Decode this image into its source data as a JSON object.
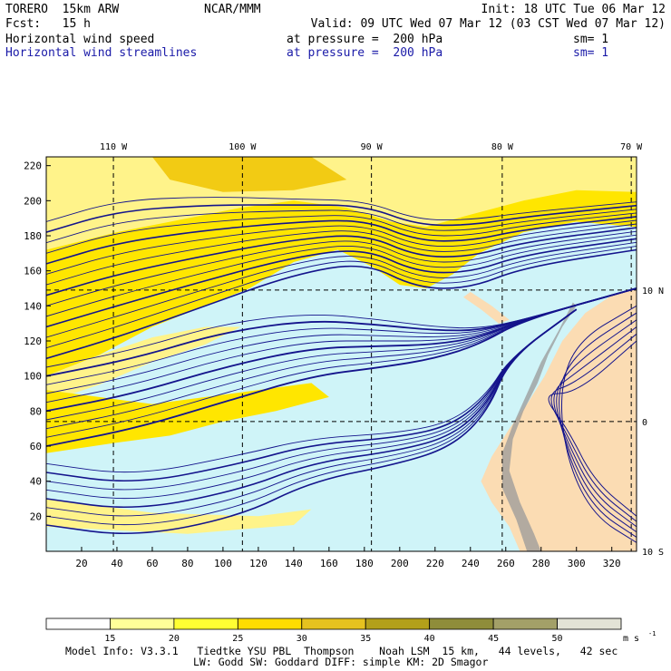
{
  "header": {
    "model": "TORERO  15km ARW",
    "org": "NCAR/MMM",
    "init": "Init: 18 UTC Tue 06 Mar 12",
    "fcst": "Fcst:   15 h",
    "valid": "Valid: 09 UTC Wed 07 Mar 12 (03 CST Wed 07 Mar 12)",
    "field1": "Horizontal wind speed",
    "field1_level": "at pressure =  200 hPa",
    "field1_sm": "sm= 1",
    "field2": "Horizontal wind streamlines",
    "field2_level": "at pressure =  200 hPa",
    "field2_sm": "sm= 1"
  },
  "footer": {
    "line1": "Model Info: V3.3.1   Tiedtke YSU PBL  Thompson    Noah LSM  15 km,   44 levels,   42 sec",
    "line2": "LW: Godd SW: Goddard DIFF: simple KM: 2D Smagor"
  },
  "chart_data": {
    "type": "heatmap",
    "title": "Horizontal wind speed and streamlines at 200 hPa",
    "x_grid_ticks": [
      20,
      40,
      60,
      80,
      100,
      120,
      140,
      160,
      180,
      200,
      220,
      240,
      260,
      280,
      300,
      320
    ],
    "y_grid_ticks": [
      20,
      40,
      60,
      80,
      100,
      120,
      140,
      160,
      180,
      200,
      220
    ],
    "xlim": [
      0,
      334
    ],
    "ylim": [
      0,
      225
    ],
    "lon_labels": [
      {
        "label": "110 W",
        "x": 38
      },
      {
        "label": "100 W",
        "x": 111
      },
      {
        "label": "90 W",
        "x": 184
      },
      {
        "label": "80 W",
        "x": 258
      },
      {
        "label": "70 W",
        "x": 331
      }
    ],
    "lat_labels": [
      {
        "label": "10 N",
        "y": 149
      },
      {
        "label": "0",
        "y": 74
      },
      {
        "label": "10 S",
        "y": 0
      }
    ],
    "colorbar": {
      "units": "m s",
      "units_exp": "-1",
      "levels": [
        15,
        20,
        25,
        30,
        35,
        40,
        45,
        50
      ],
      "colors": [
        "#ffffff",
        "#ffff99",
        "#ffff33",
        "#ffdd00",
        "#e6c21f",
        "#b3a01a",
        "#8f8d3a",
        "#a3a068",
        "#e3e3d6"
      ]
    },
    "colors": {
      "calm": "#cff4f8",
      "light": "#fff38a",
      "medium": "#ffe600",
      "strong": "#f2cb14",
      "land": "#fbdcb3",
      "streamline": "#14148c",
      "boundary": "#2a2a2a"
    }
  }
}
